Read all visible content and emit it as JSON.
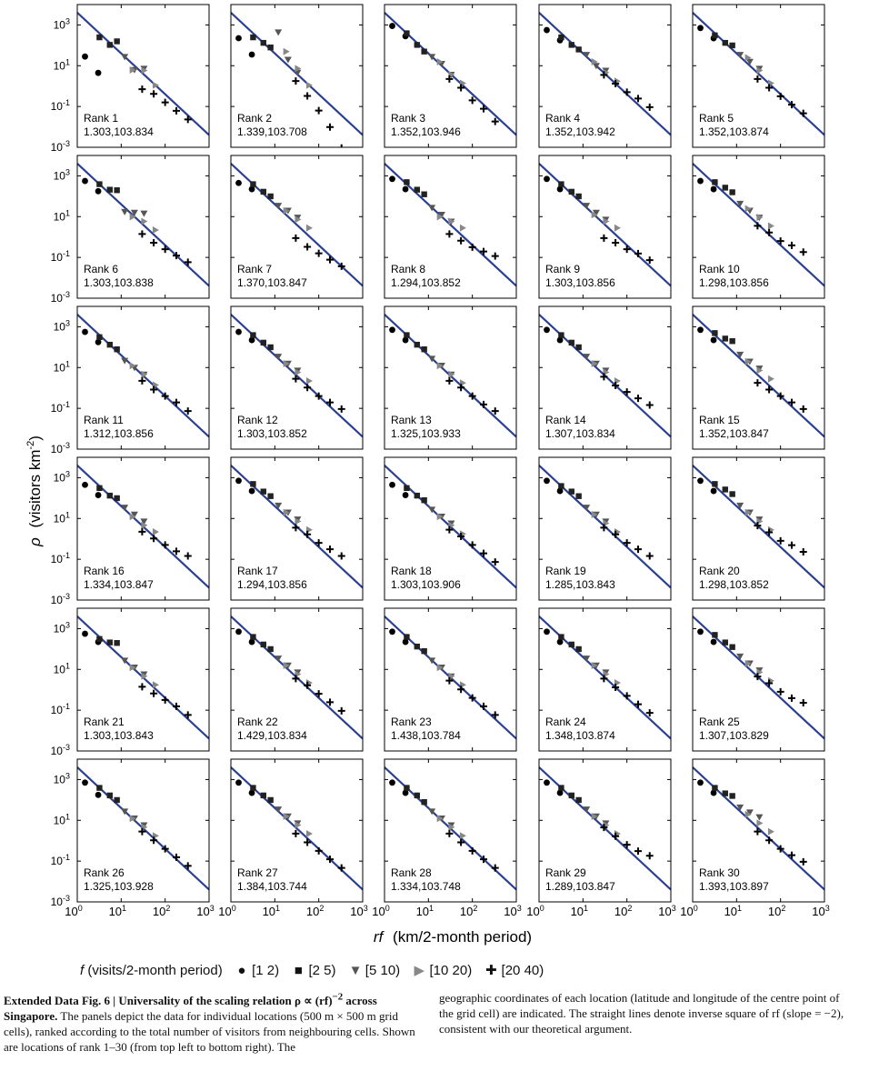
{
  "axes": {
    "xlabel_var": "rf",
    "xlabel_unit": "(km/2-month period)",
    "ylabel_var": "ρ",
    "ylabel_unit": "(visitors km",
    "ylabel_sup": "-2",
    "ylabel_close": ")",
    "x_ticks": [
      "10",
      "10",
      "10",
      "10"
    ],
    "x_tick_exps": [
      "0",
      "1",
      "2",
      "3"
    ],
    "y_ticks": [
      "10",
      "10",
      "10",
      "10"
    ],
    "y_tick_exps": [
      "3",
      "1",
      "-1",
      "-3"
    ]
  },
  "legend": {
    "title_var": "f",
    "title_unit": "(visits/2-month period)",
    "items": [
      {
        "symbol": "●",
        "label": "[1 2)",
        "color": "#000000"
      },
      {
        "symbol": "■",
        "label": "[2 5)",
        "color": "#222222"
      },
      {
        "symbol": "▼",
        "label": "[5 10)",
        "color": "#555555"
      },
      {
        "symbol": "▶",
        "label": "[10 20)",
        "color": "#888888"
      },
      {
        "symbol": "✚",
        "label": "[20 40)",
        "color": "#000000"
      }
    ]
  },
  "caption": {
    "bold": "Extended Data Fig. 6 | Universality of the scaling relation ρ ∝ (rf)",
    "bold_sup": "−2",
    "bold_tail": " across Singapore.",
    "left_text": " The panels depict the data for individual locations (500 m × 500 m grid cells), ranked according to the total number of visitors from neighbouring cells. Shown are locations of rank 1–30 (from top left to bottom right). The",
    "right_text": "geographic coordinates of each location (latitude and longitude of the centre point of the grid cell) are indicated. The straight lines denote inverse square of rf (slope = −2), consistent with our theoretical argument."
  },
  "colors": {
    "fit_line": "#2a3f8f",
    "frame": "#000000"
  },
  "chart_data": {
    "type": "scatter",
    "x_scale": "log",
    "y_scale": "log",
    "xlim": [
      1,
      1000
    ],
    "ylim": [
      0.001,
      10000
    ],
    "fit_line": {
      "slope": -2,
      "label": "inverse square of rf"
    },
    "series_names": [
      "[1 2)",
      "[2 5)",
      "[5 10)",
      "[10 20)",
      "[20 40)"
    ],
    "panels": [
      {
        "label": "Rank 1",
        "coords": "1.303,103.834",
        "A": 4000,
        "dev": [
          [
            -1.8,
            -2.0
          ],
          [
            -0.2,
            -0.1,
            0.4
          ],
          [
            0.0,
            -0.2,
            0.3
          ],
          [
            -0.3,
            0.2,
            0.0
          ],
          [
            -0.8,
            -0.5,
            -0.4,
            -0.3,
            -0.2
          ]
        ]
      },
      {
        "label": "Rank 2",
        "coords": "1.339,103.708",
        "A": 4000,
        "dev": [
          [
            -0.9,
            -1.1
          ],
          [
            -0.2,
            0.0,
            0.1
          ],
          [
            1.2,
            0.3,
            0.1
          ],
          [
            0.6,
            0.3,
            0.0
          ],
          [
            -0.4,
            -0.6,
            -0.8,
            -1.1,
            -1.6
          ]
        ]
      },
      {
        "label": "Rank 3",
        "coords": "1.352,103.946",
        "A": 4000,
        "dev": [
          [
            -0.3,
            -0.2
          ],
          [
            0.0,
            -0.1,
            -0.1
          ],
          [
            0.0,
            0.1,
            0.0
          ],
          [
            0.1,
            0.0,
            0.1
          ],
          [
            -0.3,
            -0.2,
            -0.3,
            -0.2,
            -0.3
          ]
        ]
      },
      {
        "label": "Rank 4",
        "coords": "1.352,103.942",
        "A": 4000,
        "dev": [
          [
            -0.5,
            -0.4
          ],
          [
            -0.2,
            -0.1,
            0.0
          ],
          [
            0.1,
            0.0,
            0.2
          ],
          [
            0.1,
            0.1,
            0.2
          ],
          [
            -0.1,
            0.0,
            0.1,
            0.3,
            0.4
          ]
        ]
      },
      {
        "label": "Rank 5",
        "coords": "1.352,103.874",
        "A": 4000,
        "dev": [
          [
            -0.4,
            -0.3
          ],
          [
            -0.1,
            0.0,
            0.2
          ],
          [
            0.1,
            0.2,
            0.3
          ],
          [
            0.3,
            0.2,
            0.1
          ],
          [
            -0.3,
            -0.2,
            -0.1,
            0.0,
            0.1
          ]
        ]
      },
      {
        "label": "Rank 6",
        "coords": "1.303,103.838",
        "A": 4000,
        "dev": [
          [
            -0.5,
            -0.4
          ],
          [
            0.0,
            0.2,
            0.5
          ],
          [
            -0.2,
            0.2,
            0.6
          ],
          [
            -0.1,
            0.2,
            0.3
          ],
          [
            -0.5,
            -0.4,
            -0.2,
            0.0,
            0.2
          ]
        ]
      },
      {
        "label": "Rank 7",
        "coords": "1.370,103.847",
        "A": 4000,
        "dev": [
          [
            -0.6,
            -0.3
          ],
          [
            0.0,
            0.1,
            0.2
          ],
          [
            0.1,
            0.3,
            0.4
          ],
          [
            0.2,
            0.3,
            0.4
          ],
          [
            -0.7,
            -0.6,
            -0.4,
            -0.2,
            0.0
          ]
        ]
      },
      {
        "label": "Rank 8",
        "coords": "1.294,103.852",
        "A": 4000,
        "dev": [
          [
            -0.4,
            -0.3
          ],
          [
            0.1,
            0.2,
            0.3
          ],
          [
            0.0,
            0.1,
            0.2
          ],
          [
            -0.1,
            0.2,
            0.4
          ],
          [
            -0.5,
            -0.3,
            -0.1,
            0.2,
            0.5
          ]
        ]
      },
      {
        "label": "Rank 9",
        "coords": "1.303,103.856",
        "A": 4000,
        "dev": [
          [
            -0.4,
            -0.3
          ],
          [
            0.0,
            0.1,
            0.2
          ],
          [
            0.1,
            0.2,
            0.3
          ],
          [
            0.0,
            0.2,
            0.4
          ],
          [
            -0.7,
            -0.4,
            -0.2,
            0.1,
            0.3
          ]
        ]
      },
      {
        "label": "Rank 10",
        "coords": "1.298,103.856",
        "A": 4000,
        "dev": [
          [
            -0.5,
            -0.3
          ],
          [
            0.1,
            0.3,
            0.4
          ],
          [
            0.2,
            0.3,
            0.4
          ],
          [
            0.3,
            0.4,
            0.5
          ],
          [
            -0.1,
            0.1,
            0.2,
            0.5,
            0.7
          ]
        ]
      },
      {
        "label": "Rank 11",
        "coords": "1.312,103.856",
        "A": 4000,
        "dev": [
          [
            -0.5,
            -0.4
          ],
          [
            -0.1,
            0.0,
            0.1
          ],
          [
            -0.1,
            0.0,
            0.1
          ],
          [
            0.0,
            0.1,
            0.1
          ],
          [
            -0.3,
            -0.2,
            0.0,
            0.2,
            0.3
          ]
        ]
      },
      {
        "label": "Rank 12",
        "coords": "1.303,103.852",
        "A": 4000,
        "dev": [
          [
            -0.5,
            -0.3
          ],
          [
            0.0,
            0.1,
            0.2
          ],
          [
            0.1,
            0.2,
            0.3
          ],
          [
            0.1,
            0.2,
            0.3
          ],
          [
            -0.2,
            -0.1,
            0.0,
            0.2,
            0.4
          ]
        ]
      },
      {
        "label": "Rank 13",
        "coords": "1.325,103.933",
        "A": 4000,
        "dev": [
          [
            -0.4,
            -0.3
          ],
          [
            0.0,
            0.0,
            0.1
          ],
          [
            0.0,
            0.1,
            0.1
          ],
          [
            0.0,
            0.1,
            0.2
          ],
          [
            -0.3,
            -0.1,
            0.0,
            0.1,
            0.3
          ]
        ]
      },
      {
        "label": "Rank 14",
        "coords": "1.307,103.834",
        "A": 4000,
        "dev": [
          [
            -0.4,
            -0.3
          ],
          [
            0.0,
            0.1,
            0.2
          ],
          [
            0.1,
            0.2,
            0.3
          ],
          [
            0.1,
            0.2,
            0.3
          ],
          [
            -0.1,
            0.0,
            0.2,
            0.4,
            0.6
          ]
        ]
      },
      {
        "label": "Rank 15",
        "coords": "1.352,103.847",
        "A": 4000,
        "dev": [
          [
            -0.4,
            -0.3
          ],
          [
            0.1,
            0.3,
            0.5
          ],
          [
            0.2,
            0.3,
            0.4
          ],
          [
            0.2,
            0.3,
            0.4
          ],
          [
            -0.4,
            -0.2,
            0.0,
            0.2,
            0.4
          ]
        ]
      },
      {
        "label": "Rank 16",
        "coords": "1.334,103.847",
        "A": 4000,
        "dev": [
          [
            -0.6,
            -0.5
          ],
          [
            -0.1,
            0.0,
            0.2
          ],
          [
            0.1,
            0.2,
            0.3
          ],
          [
            0.0,
            0.1,
            0.3
          ],
          [
            -0.3,
            -0.1,
            0.1,
            0.3,
            0.6
          ]
        ]
      },
      {
        "label": "Rank 17",
        "coords": "1.294,103.856",
        "A": 4000,
        "dev": [
          [
            -0.4,
            -0.3
          ],
          [
            0.1,
            0.2,
            0.3
          ],
          [
            0.2,
            0.3,
            0.4
          ],
          [
            0.2,
            0.3,
            0.4
          ],
          [
            -0.1,
            0.1,
            0.2,
            0.4,
            0.6
          ]
        ]
      },
      {
        "label": "Rank 18",
        "coords": "1.303,103.906",
        "A": 4000,
        "dev": [
          [
            -0.6,
            -0.5
          ],
          [
            -0.1,
            0.0,
            0.1
          ],
          [
            0.0,
            0.1,
            0.2
          ],
          [
            0.0,
            0.1,
            0.2
          ],
          [
            -0.2,
            0.0,
            0.1,
            0.2,
            0.3
          ]
        ]
      },
      {
        "label": "Rank 19",
        "coords": "1.285,103.843",
        "A": 4000,
        "dev": [
          [
            -0.4,
            -0.3
          ],
          [
            0.0,
            0.2,
            0.3
          ],
          [
            0.1,
            0.2,
            0.3
          ],
          [
            0.1,
            0.2,
            0.3
          ],
          [
            -0.1,
            0.1,
            0.2,
            0.4,
            0.6
          ]
        ]
      },
      {
        "label": "Rank 20",
        "coords": "1.298,103.852",
        "A": 4000,
        "dev": [
          [
            -0.4,
            -0.3
          ],
          [
            0.1,
            0.3,
            0.4
          ],
          [
            0.2,
            0.3,
            0.4
          ],
          [
            0.2,
            0.3,
            0.4
          ],
          [
            0.0,
            0.2,
            0.3,
            0.6,
            0.8
          ]
        ]
      },
      {
        "label": "Rank 21",
        "coords": "1.303,103.843",
        "A": 4000,
        "dev": [
          [
            -0.5,
            -0.3
          ],
          [
            -0.1,
            0.2,
            0.5
          ],
          [
            0.0,
            0.1,
            0.2
          ],
          [
            0.0,
            0.1,
            0.2
          ],
          [
            -0.5,
            -0.3,
            -0.1,
            0.1,
            0.2
          ]
        ]
      },
      {
        "label": "Rank 22",
        "coords": "1.429,103.834",
        "A": 4000,
        "dev": [
          [
            -0.4,
            -0.3
          ],
          [
            0.0,
            0.1,
            0.2
          ],
          [
            0.1,
            0.2,
            0.3
          ],
          [
            0.1,
            0.2,
            0.3
          ],
          [
            -0.1,
            0.1,
            0.2,
            0.3,
            0.4
          ]
        ]
      },
      {
        "label": "Rank 23",
        "coords": "1.438,103.784",
        "A": 4000,
        "dev": [
          [
            -0.4,
            -0.3
          ],
          [
            0.0,
            0.0,
            0.1
          ],
          [
            0.0,
            0.1,
            0.1
          ],
          [
            0.0,
            0.1,
            0.2
          ],
          [
            -0.2,
            -0.1,
            0.0,
            0.1,
            0.2
          ]
        ]
      },
      {
        "label": "Rank 24",
        "coords": "1.348,103.874",
        "A": 4000,
        "dev": [
          [
            -0.4,
            -0.3
          ],
          [
            0.0,
            0.1,
            0.2
          ],
          [
            0.1,
            0.2,
            0.3
          ],
          [
            0.1,
            0.2,
            0.3
          ],
          [
            -0.1,
            0.0,
            0.1,
            0.2,
            0.3
          ]
        ]
      },
      {
        "label": "Rank 25",
        "coords": "1.307,103.829",
        "A": 4000,
        "dev": [
          [
            -0.4,
            -0.3
          ],
          [
            0.1,
            0.2,
            0.3
          ],
          [
            0.2,
            0.3,
            0.4
          ],
          [
            0.2,
            0.3,
            0.4
          ],
          [
            0.0,
            0.2,
            0.3,
            0.5,
            0.8
          ]
        ]
      },
      {
        "label": "Rank 26",
        "coords": "1.325,103.928",
        "A": 4000,
        "dev": [
          [
            -0.4,
            -0.4
          ],
          [
            0.0,
            0.1,
            0.2
          ],
          [
            0.0,
            0.1,
            0.2
          ],
          [
            0.0,
            0.1,
            0.2
          ],
          [
            -0.2,
            -0.1,
            0.0,
            0.1,
            0.2
          ]
        ]
      },
      {
        "label": "Rank 27",
        "coords": "1.384,103.744",
        "A": 4000,
        "dev": [
          [
            -0.4,
            -0.3
          ],
          [
            0.0,
            0.1,
            0.2
          ],
          [
            0.1,
            0.2,
            0.3
          ],
          [
            0.1,
            0.2,
            0.3
          ],
          [
            -0.3,
            -0.2,
            -0.1,
            0.0,
            0.1
          ]
        ]
      },
      {
        "label": "Rank 28",
        "coords": "1.334,103.748",
        "A": 4000,
        "dev": [
          [
            -0.4,
            -0.3
          ],
          [
            0.0,
            0.1,
            0.1
          ],
          [
            0.0,
            0.1,
            0.2
          ],
          [
            0.0,
            0.1,
            0.2
          ],
          [
            -0.3,
            -0.2,
            -0.1,
            0.0,
            0.1
          ]
        ]
      },
      {
        "label": "Rank 29",
        "coords": "1.289,103.847",
        "A": 4000,
        "dev": [
          [
            -0.4,
            -0.3
          ],
          [
            0.0,
            0.1,
            0.2
          ],
          [
            0.1,
            0.2,
            0.3
          ],
          [
            0.1,
            0.2,
            0.3
          ],
          [
            0.0,
            0.1,
            0.2,
            0.4,
            0.7
          ]
        ]
      },
      {
        "label": "Rank 30",
        "coords": "1.393,103.897",
        "A": 4000,
        "dev": [
          [
            -0.4,
            -0.3
          ],
          [
            0.0,
            0.2,
            0.4
          ],
          [
            0.2,
            0.4,
            0.6
          ],
          [
            0.2,
            0.3,
            0.4
          ],
          [
            -0.2,
            -0.1,
            0.0,
            0.2,
            0.4
          ]
        ]
      }
    ]
  }
}
